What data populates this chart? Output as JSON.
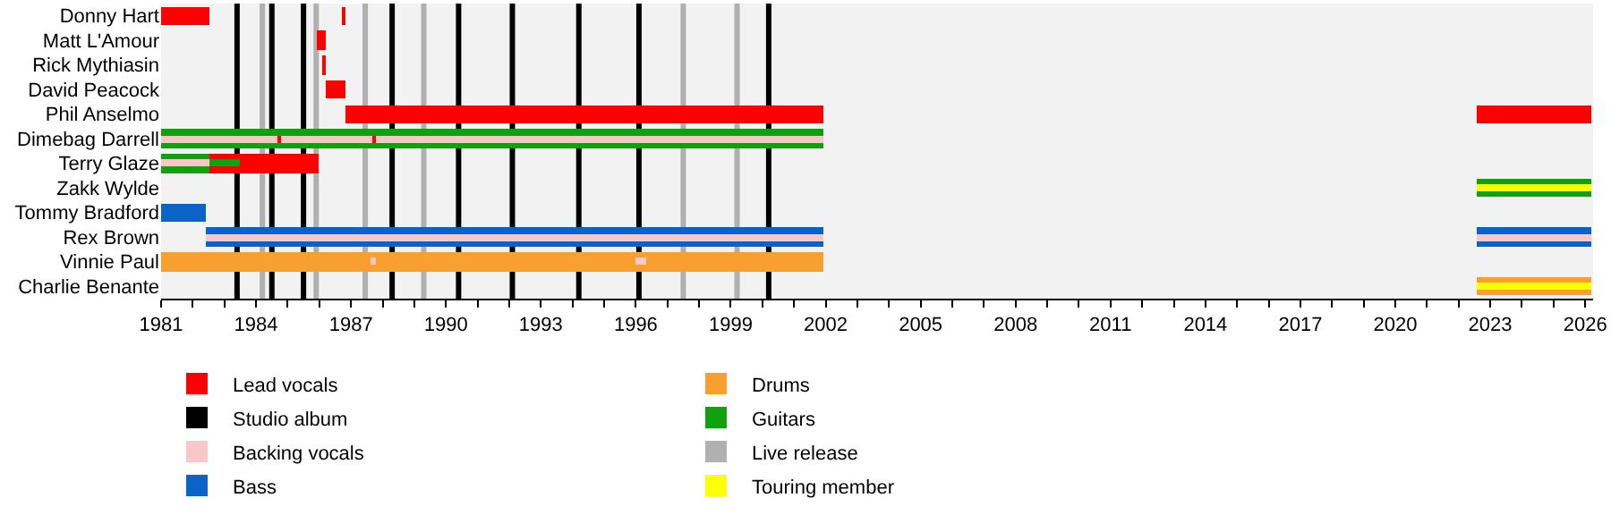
{
  "chart_data": {
    "type": "bar",
    "orientation": "horizontal",
    "categories": [
      "Donny Hart",
      "Matt L'Amour",
      "Rick Mythiasin",
      "David Peacock",
      "Phil Anselmo",
      "Dimebag Darrell",
      "Terry Glaze",
      "Zakk Wylde",
      "Tommy Bradford",
      "Rex Brown",
      "Vinnie Paul",
      "Charlie Benante"
    ],
    "series": [
      {
        "name": "Lead vocals",
        "color": "#ff0000",
        "base": [
          1981,
          1985.9,
          1986.1,
          1986.2,
          1986.8,
          null,
          1982.5,
          null,
          null,
          null,
          null,
          null
        ],
        "values": [
          1.5,
          0.3,
          0.1,
          0.6,
          15.1,
          null,
          3.5,
          null,
          null,
          null,
          null,
          null
        ]
      },
      {
        "color": "#ff0000",
        "base": [
          1986.75,
          null,
          null,
          null,
          2022.6,
          null,
          null,
          null,
          null,
          null,
          null,
          null
        ],
        "values": [
          0.1,
          null,
          null,
          null,
          3.6,
          null,
          null,
          null,
          null,
          null,
          null,
          null
        ]
      },
      {
        "name": "Guitars",
        "color": "#10a010",
        "base": [
          null,
          null,
          null,
          null,
          null,
          1981,
          1981,
          2022.6,
          null,
          null,
          null,
          null
        ],
        "values": [
          null,
          null,
          null,
          null,
          null,
          20.9,
          1.5,
          3.6,
          null,
          null,
          null,
          null
        ]
      },
      {
        "name": "Bass",
        "color": "#0a64c8",
        "base": [
          null,
          null,
          null,
          null,
          null,
          null,
          null,
          null,
          1981,
          1982.4,
          null,
          null
        ],
        "values": [
          null,
          null,
          null,
          null,
          null,
          null,
          null,
          null,
          1.4,
          19.5,
          null,
          null
        ]
      },
      {
        "color": "#0a64c8",
        "base": [
          null,
          null,
          null,
          null,
          null,
          null,
          null,
          null,
          null,
          2022.6,
          null,
          null
        ],
        "values": [
          null,
          null,
          null,
          null,
          null,
          null,
          null,
          null,
          null,
          3.6,
          null,
          null
        ]
      },
      {
        "name": "Drums",
        "color": "#f7a030",
        "base": [
          null,
          null,
          null,
          null,
          null,
          null,
          null,
          null,
          null,
          null,
          1981,
          2022.6
        ],
        "values": [
          null,
          null,
          null,
          null,
          null,
          null,
          null,
          null,
          null,
          null,
          20.9,
          3.6
        ]
      },
      {
        "name": "Backing vocals",
        "color": "#f8c8c8",
        "base": [
          null,
          null,
          null,
          null,
          null,
          1981,
          1981,
          null,
          null,
          1982.4,
          1987.6,
          null
        ],
        "values": [
          null,
          null,
          null,
          null,
          null,
          20.9,
          1.5,
          null,
          null,
          19.5,
          0.2,
          null
        ]
      },
      {
        "color": "#f8c8c8",
        "base": [
          null,
          null,
          null,
          null,
          null,
          null,
          null,
          null,
          null,
          2022.6,
          1996.0,
          null
        ],
        "values": [
          null,
          null,
          null,
          null,
          null,
          null,
          null,
          null,
          null,
          3.6,
          0.3,
          null
        ]
      },
      {
        "name": "Touring member",
        "color": "#ffff00",
        "base": [
          null,
          null,
          null,
          null,
          null,
          null,
          null,
          2022.6,
          null,
          null,
          null,
          2022.6
        ],
        "values": [
          null,
          null,
          null,
          null,
          null,
          null,
          null,
          3.6,
          null,
          null,
          null,
          3.6
        ]
      },
      {
        "color": "#ff0000",
        "base": [
          null,
          null,
          null,
          null,
          null,
          1984.7,
          null,
          null,
          null,
          null,
          null,
          null
        ],
        "values": [
          null,
          null,
          null,
          null,
          null,
          0.1,
          null,
          null,
          null,
          null,
          null,
          null
        ]
      },
      {
        "color": "#ff0000",
        "base": [
          null,
          null,
          null,
          null,
          null,
          1987.7,
          null,
          null,
          null,
          null,
          null,
          null
        ],
        "values": [
          null,
          null,
          null,
          null,
          null,
          0.1,
          null,
          null,
          null,
          null,
          null,
          null
        ]
      },
      {
        "color": "#10a010",
        "base": [
          null,
          null,
          null,
          null,
          null,
          null,
          1982.5,
          null,
          null,
          null,
          null,
          null
        ],
        "values": [
          null,
          null,
          null,
          null,
          null,
          null,
          1.0,
          null,
          null,
          null,
          null,
          null
        ]
      }
    ],
    "ref_lines": [
      {
        "axis": "x",
        "value": 1983.4,
        "color": "#000000",
        "label": "Studio album"
      },
      {
        "axis": "x",
        "value": 1984.5,
        "color": "#000000"
      },
      {
        "axis": "x",
        "value": 1985.5,
        "color": "#000000"
      },
      {
        "axis": "x",
        "value": 1988.3,
        "color": "#000000"
      },
      {
        "axis": "x",
        "value": 1990.4,
        "color": "#000000"
      },
      {
        "axis": "x",
        "value": 1992.1,
        "color": "#000000"
      },
      {
        "axis": "x",
        "value": 1994.2,
        "color": "#000000"
      },
      {
        "axis": "x",
        "value": 1996.1,
        "color": "#000000"
      },
      {
        "axis": "x",
        "value": 2000.2,
        "color": "#000000"
      },
      {
        "axis": "x",
        "value": 1984.2,
        "color": "#b0b0b0",
        "label": "Live release"
      },
      {
        "axis": "x",
        "value": 1985.9,
        "color": "#b0b0b0"
      },
      {
        "axis": "x",
        "value": 1987.45,
        "color": "#b0b0b0"
      },
      {
        "axis": "x",
        "value": 1989.3,
        "color": "#b0b0b0"
      },
      {
        "axis": "x",
        "value": 1997.5,
        "color": "#b0b0b0"
      },
      {
        "axis": "x",
        "value": 1999.2,
        "color": "#b0b0b0"
      }
    ],
    "xlim": [
      1981,
      2026.25
    ],
    "xticks": [
      1981,
      {
        "value": 1982,
        "label": null
      },
      {
        "value": 1983,
        "label": null
      },
      1984,
      {
        "value": 1985,
        "label": null
      },
      {
        "value": 1986,
        "label": null
      },
      1987,
      {
        "value": 1988,
        "label": null
      },
      {
        "value": 1989,
        "label": null
      },
      1990,
      {
        "value": 1991,
        "label": null
      },
      {
        "value": 1992,
        "label": null
      },
      1993,
      {
        "value": 1994,
        "label": null
      },
      {
        "value": 1995,
        "label": null
      },
      1996,
      {
        "value": 1997,
        "label": null
      },
      {
        "value": 1998,
        "label": null
      },
      1999,
      {
        "value": 2000,
        "label": null
      },
      {
        "value": 2001,
        "label": null
      },
      2002,
      {
        "value": 2003,
        "label": null
      },
      {
        "value": 2004,
        "label": null
      },
      2005,
      {
        "value": 2006,
        "label": null
      },
      {
        "value": 2007,
        "label": null
      },
      2008,
      {
        "value": 2009,
        "label": null
      },
      {
        "value": 2010,
        "label": null
      },
      2011,
      {
        "value": 2012,
        "label": null
      },
      {
        "value": 2013,
        "label": null
      },
      2014,
      {
        "value": 2015,
        "label": null
      },
      {
        "value": 2016,
        "label": null
      },
      2017,
      {
        "value": 2018,
        "label": null
      },
      {
        "value": 2019,
        "label": null
      },
      2020,
      {
        "value": 2021,
        "label": null
      },
      {
        "value": 2022,
        "label": null
      },
      2023,
      {
        "value": 2024,
        "label": null
      },
      {
        "value": 2025,
        "label": null
      },
      2026
    ],
    "grid": false,
    "legend": "bottom"
  }
}
